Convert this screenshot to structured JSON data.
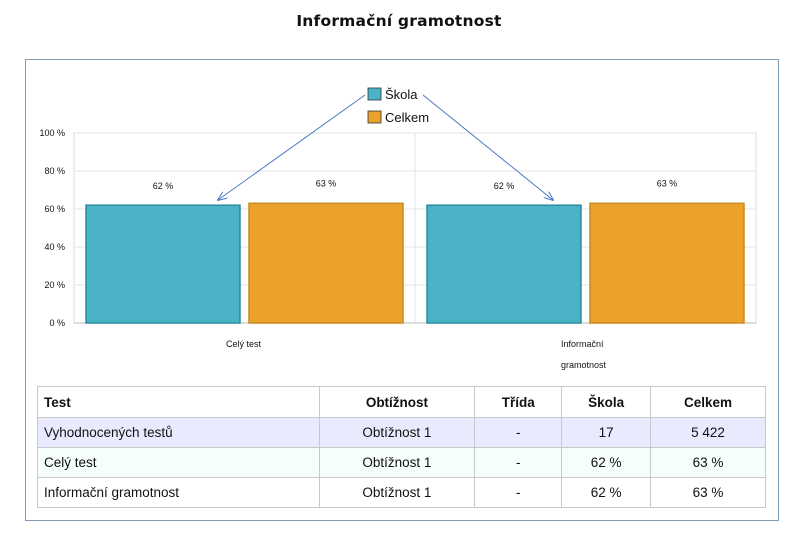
{
  "page": {
    "title": "Informační gramotnost"
  },
  "colors": {
    "skola": "#4bb3c8",
    "skola_border": "#2a8ca0",
    "celkem": "#eaa22a",
    "celkem_border": "#c88a1e",
    "arrow": "#4a78c8"
  },
  "chart_data": {
    "type": "bar",
    "categories": [
      "Celý test",
      "Informační gramotnost"
    ],
    "category_label_lines": [
      [
        "Celý test"
      ],
      [
        "Informační",
        "gramotnost"
      ]
    ],
    "series": [
      {
        "name": "Škola",
        "values": [
          62,
          62
        ],
        "labels": [
          "62 %",
          "62 %"
        ]
      },
      {
        "name": "Celkem",
        "values": [
          63,
          63
        ],
        "labels": [
          "63 %",
          "63 %"
        ]
      }
    ],
    "yticks": [
      "0 %",
      "20 %",
      "40 %",
      "60 %",
      "80 %",
      "100 %"
    ],
    "ylim": [
      0,
      100
    ],
    "grid": true,
    "legend": "top-center",
    "annotations": "arrows from legend entry Škola to the Škola bars"
  },
  "table": {
    "headers": [
      "Test",
      "Obtížnost",
      "Třída",
      "Škola",
      "Celkem"
    ],
    "rows": [
      [
        "Vyhodnocených testů",
        "Obtížnost 1",
        "-",
        "17",
        "5 422"
      ],
      [
        "Celý test",
        "Obtížnost 1",
        "-",
        "62 %",
        "63 %"
      ],
      [
        "Informační gramotnost",
        "Obtížnost 1",
        "-",
        "62 %",
        "63 %"
      ]
    ]
  }
}
